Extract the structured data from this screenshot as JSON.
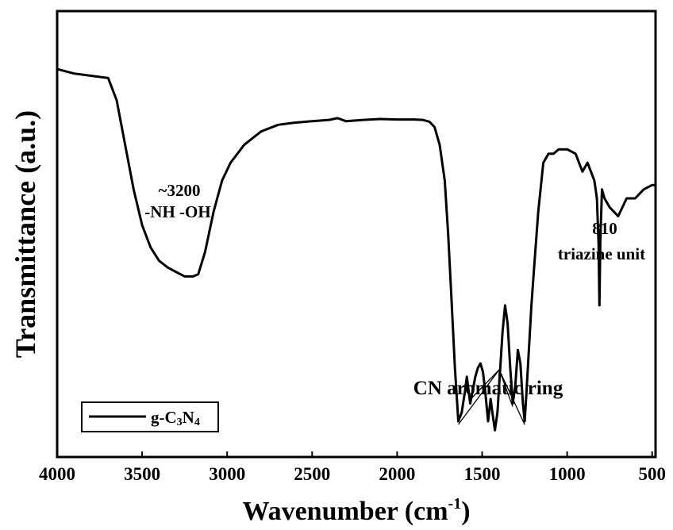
{
  "chart_data": {
    "type": "line",
    "xlabel": "Wavenumber (cm",
    "xlabel_sup": "-1",
    "xlabel_close": ")",
    "ylabel": "Transmittance (a.u.)",
    "xlim": [
      4000,
      480
    ],
    "ylim": [
      0,
      100
    ],
    "x_reversed": true,
    "y_ticks_shown": false,
    "grid": false,
    "legend_position": "bottom-left",
    "xticks": [
      4000,
      3500,
      3000,
      2500,
      2000,
      1500,
      1000,
      500
    ],
    "xtick_labels": [
      "4000",
      "3500",
      "3000",
      "2500",
      "2000",
      "1500",
      "1000",
      "500"
    ],
    "series": [
      {
        "name": "g-C",
        "name_sub1": "3",
        "name_mid": "N",
        "name_sub2": "4",
        "color": "#000000",
        "x": [
          4000,
          3900,
          3800,
          3700,
          3650,
          3600,
          3550,
          3500,
          3450,
          3400,
          3350,
          3300,
          3250,
          3200,
          3170,
          3130,
          3080,
          3030,
          2980,
          2900,
          2800,
          2700,
          2600,
          2500,
          2400,
          2350,
          2300,
          2200,
          2100,
          2000,
          1900,
          1850,
          1810,
          1780,
          1750,
          1720,
          1700,
          1680,
          1660,
          1640,
          1620,
          1600,
          1590,
          1570,
          1555,
          1540,
          1525,
          1510,
          1495,
          1480,
          1465,
          1450,
          1440,
          1425,
          1410,
          1395,
          1380,
          1365,
          1350,
          1335,
          1320,
          1305,
          1290,
          1275,
          1260,
          1250,
          1240,
          1225,
          1210,
          1195,
          1170,
          1140,
          1110,
          1080,
          1050,
          1000,
          950,
          910,
          880,
          860,
          840,
          825,
          815,
          810,
          805,
          795,
          780,
          750,
          700,
          650,
          600,
          550,
          500,
          480
        ],
        "y": [
          87,
          86,
          85.5,
          85,
          80,
          70,
          60,
          52,
          47,
          44,
          42.5,
          41.5,
          40.5,
          40.5,
          41,
          46,
          55,
          62,
          66,
          70,
          73,
          74.5,
          75,
          75.3,
          75.6,
          76,
          75.3,
          75.6,
          75.8,
          75.7,
          75.7,
          75.6,
          75.2,
          74,
          70,
          62,
          50,
          35,
          20,
          8,
          10,
          15,
          18,
          12,
          15,
          18,
          20,
          21,
          19,
          14,
          8,
          13,
          10,
          6,
          10,
          19,
          28,
          34,
          30,
          20,
          12,
          16,
          24,
          21,
          12,
          8,
          14,
          24,
          34,
          42,
          55,
          66,
          68,
          68,
          69,
          69,
          68,
          64,
          66,
          64,
          62,
          58,
          48,
          34,
          48,
          60,
          58,
          56,
          54,
          58,
          58,
          60,
          61,
          61
        ]
      }
    ],
    "annotations": [
      {
        "id": "oh",
        "lines": [
          "~3200",
          "-NH -OH"
        ]
      },
      {
        "id": "triazine",
        "lines": [
          "810",
          "triazine unit"
        ]
      },
      {
        "id": "cn",
        "lines": [
          "CN aromatic ring"
        ]
      }
    ],
    "cn_pointer_peaks": [
      1640,
      1560,
      1410,
      1320,
      1250
    ]
  }
}
